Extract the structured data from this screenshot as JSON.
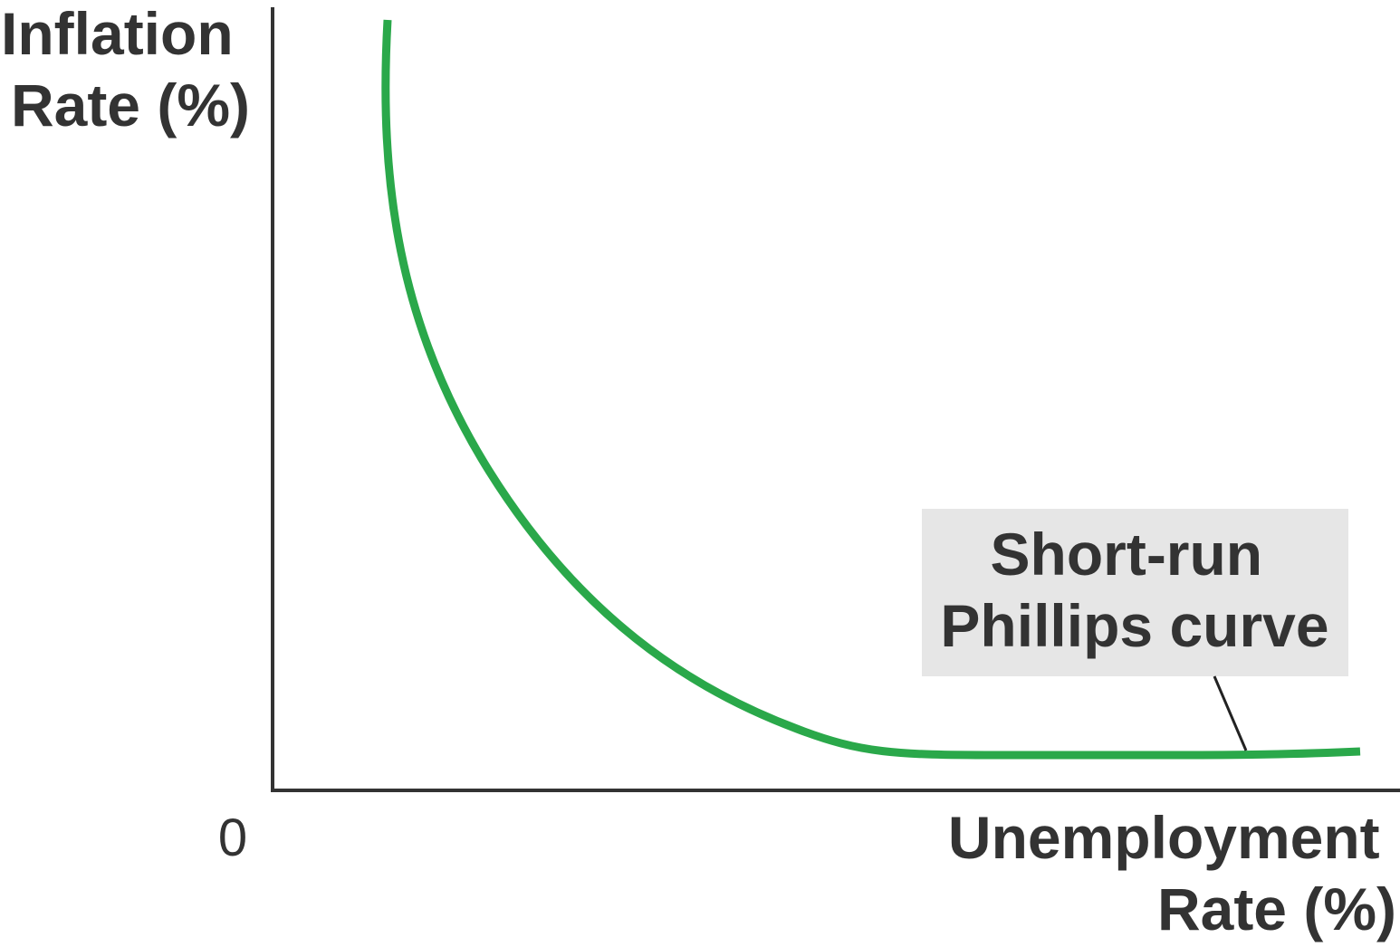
{
  "chart_data": {
    "type": "line",
    "title": "",
    "ylabel_lines": [
      "Inflation",
      "Rate (%)"
    ],
    "xlabel_lines": [
      "Unemployment",
      "Rate (%)"
    ],
    "origin_label": "0",
    "series": [
      {
        "name": "Short-run Phillips curve",
        "label_lines": [
          "Short-run",
          "Phillips curve"
        ],
        "color": "#2aa84a",
        "shape": "downward-sloping convex curve, steep at low unemployment and flattening at high unemployment"
      }
    ],
    "label_box_color": "#e6e6e6",
    "grid": false
  }
}
